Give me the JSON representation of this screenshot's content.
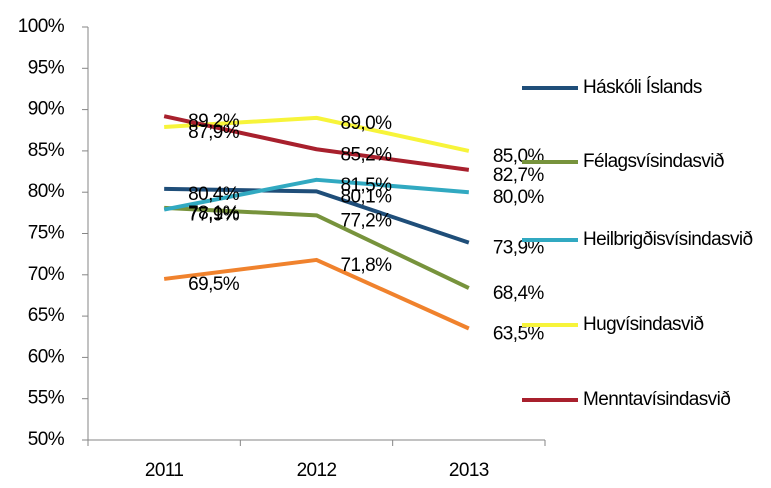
{
  "chart_data": {
    "type": "line",
    "categories": [
      "2011",
      "2012",
      "2013"
    ],
    "series": [
      {
        "name": "Háskóli Íslands",
        "color": "#1f4e79",
        "values": [
          80.4,
          80.1,
          73.9
        ],
        "value_labels": [
          "80,4%",
          "80,1%",
          "73,9%"
        ]
      },
      {
        "name": "Félagsvísindasvið",
        "color": "#77933c",
        "values": [
          78.1,
          77.2,
          68.4
        ],
        "value_labels": [
          "78,1%",
          "77,2%",
          "68,4%"
        ]
      },
      {
        "name": "Heilbrigðisvísindasvið",
        "color": "#31a9c1",
        "values": [
          77.9,
          81.5,
          80.0
        ],
        "value_labels": [
          "77,9%",
          "81,5%",
          "80,0%"
        ]
      },
      {
        "name": "Hugvísindasvið",
        "color": "#f7f43a",
        "values": [
          87.9,
          89.0,
          85.0
        ],
        "value_labels": [
          "87,9%",
          "89,0%",
          "85,0%"
        ]
      },
      {
        "name": "Menntavísindasvið",
        "color": "#a8202d",
        "values": [
          89.2,
          85.2,
          82.7
        ],
        "value_labels": [
          "89,2%",
          "85,2%",
          "82,7%"
        ]
      },
      {
        "color": "#f0822d",
        "values": [
          69.5,
          71.8,
          63.5
        ],
        "value_labels": [
          "69,5%",
          "71,8%",
          "63,5%"
        ]
      }
    ],
    "ylim": [
      50,
      100
    ],
    "yticks": [
      {
        "value": 50,
        "label": "50%"
      },
      {
        "value": 55,
        "label": "55%"
      },
      {
        "value": 60,
        "label": "60%"
      },
      {
        "value": 65,
        "label": "65%"
      },
      {
        "value": 70,
        "label": "70%"
      },
      {
        "value": 75,
        "label": "75%"
      },
      {
        "value": 80,
        "label": "80%"
      },
      {
        "value": 85,
        "label": "85%"
      },
      {
        "value": 90,
        "label": "90%"
      },
      {
        "value": 95,
        "label": "95%"
      },
      {
        "value": 100,
        "label": "100%"
      }
    ],
    "legend": "right",
    "grid": false
  }
}
